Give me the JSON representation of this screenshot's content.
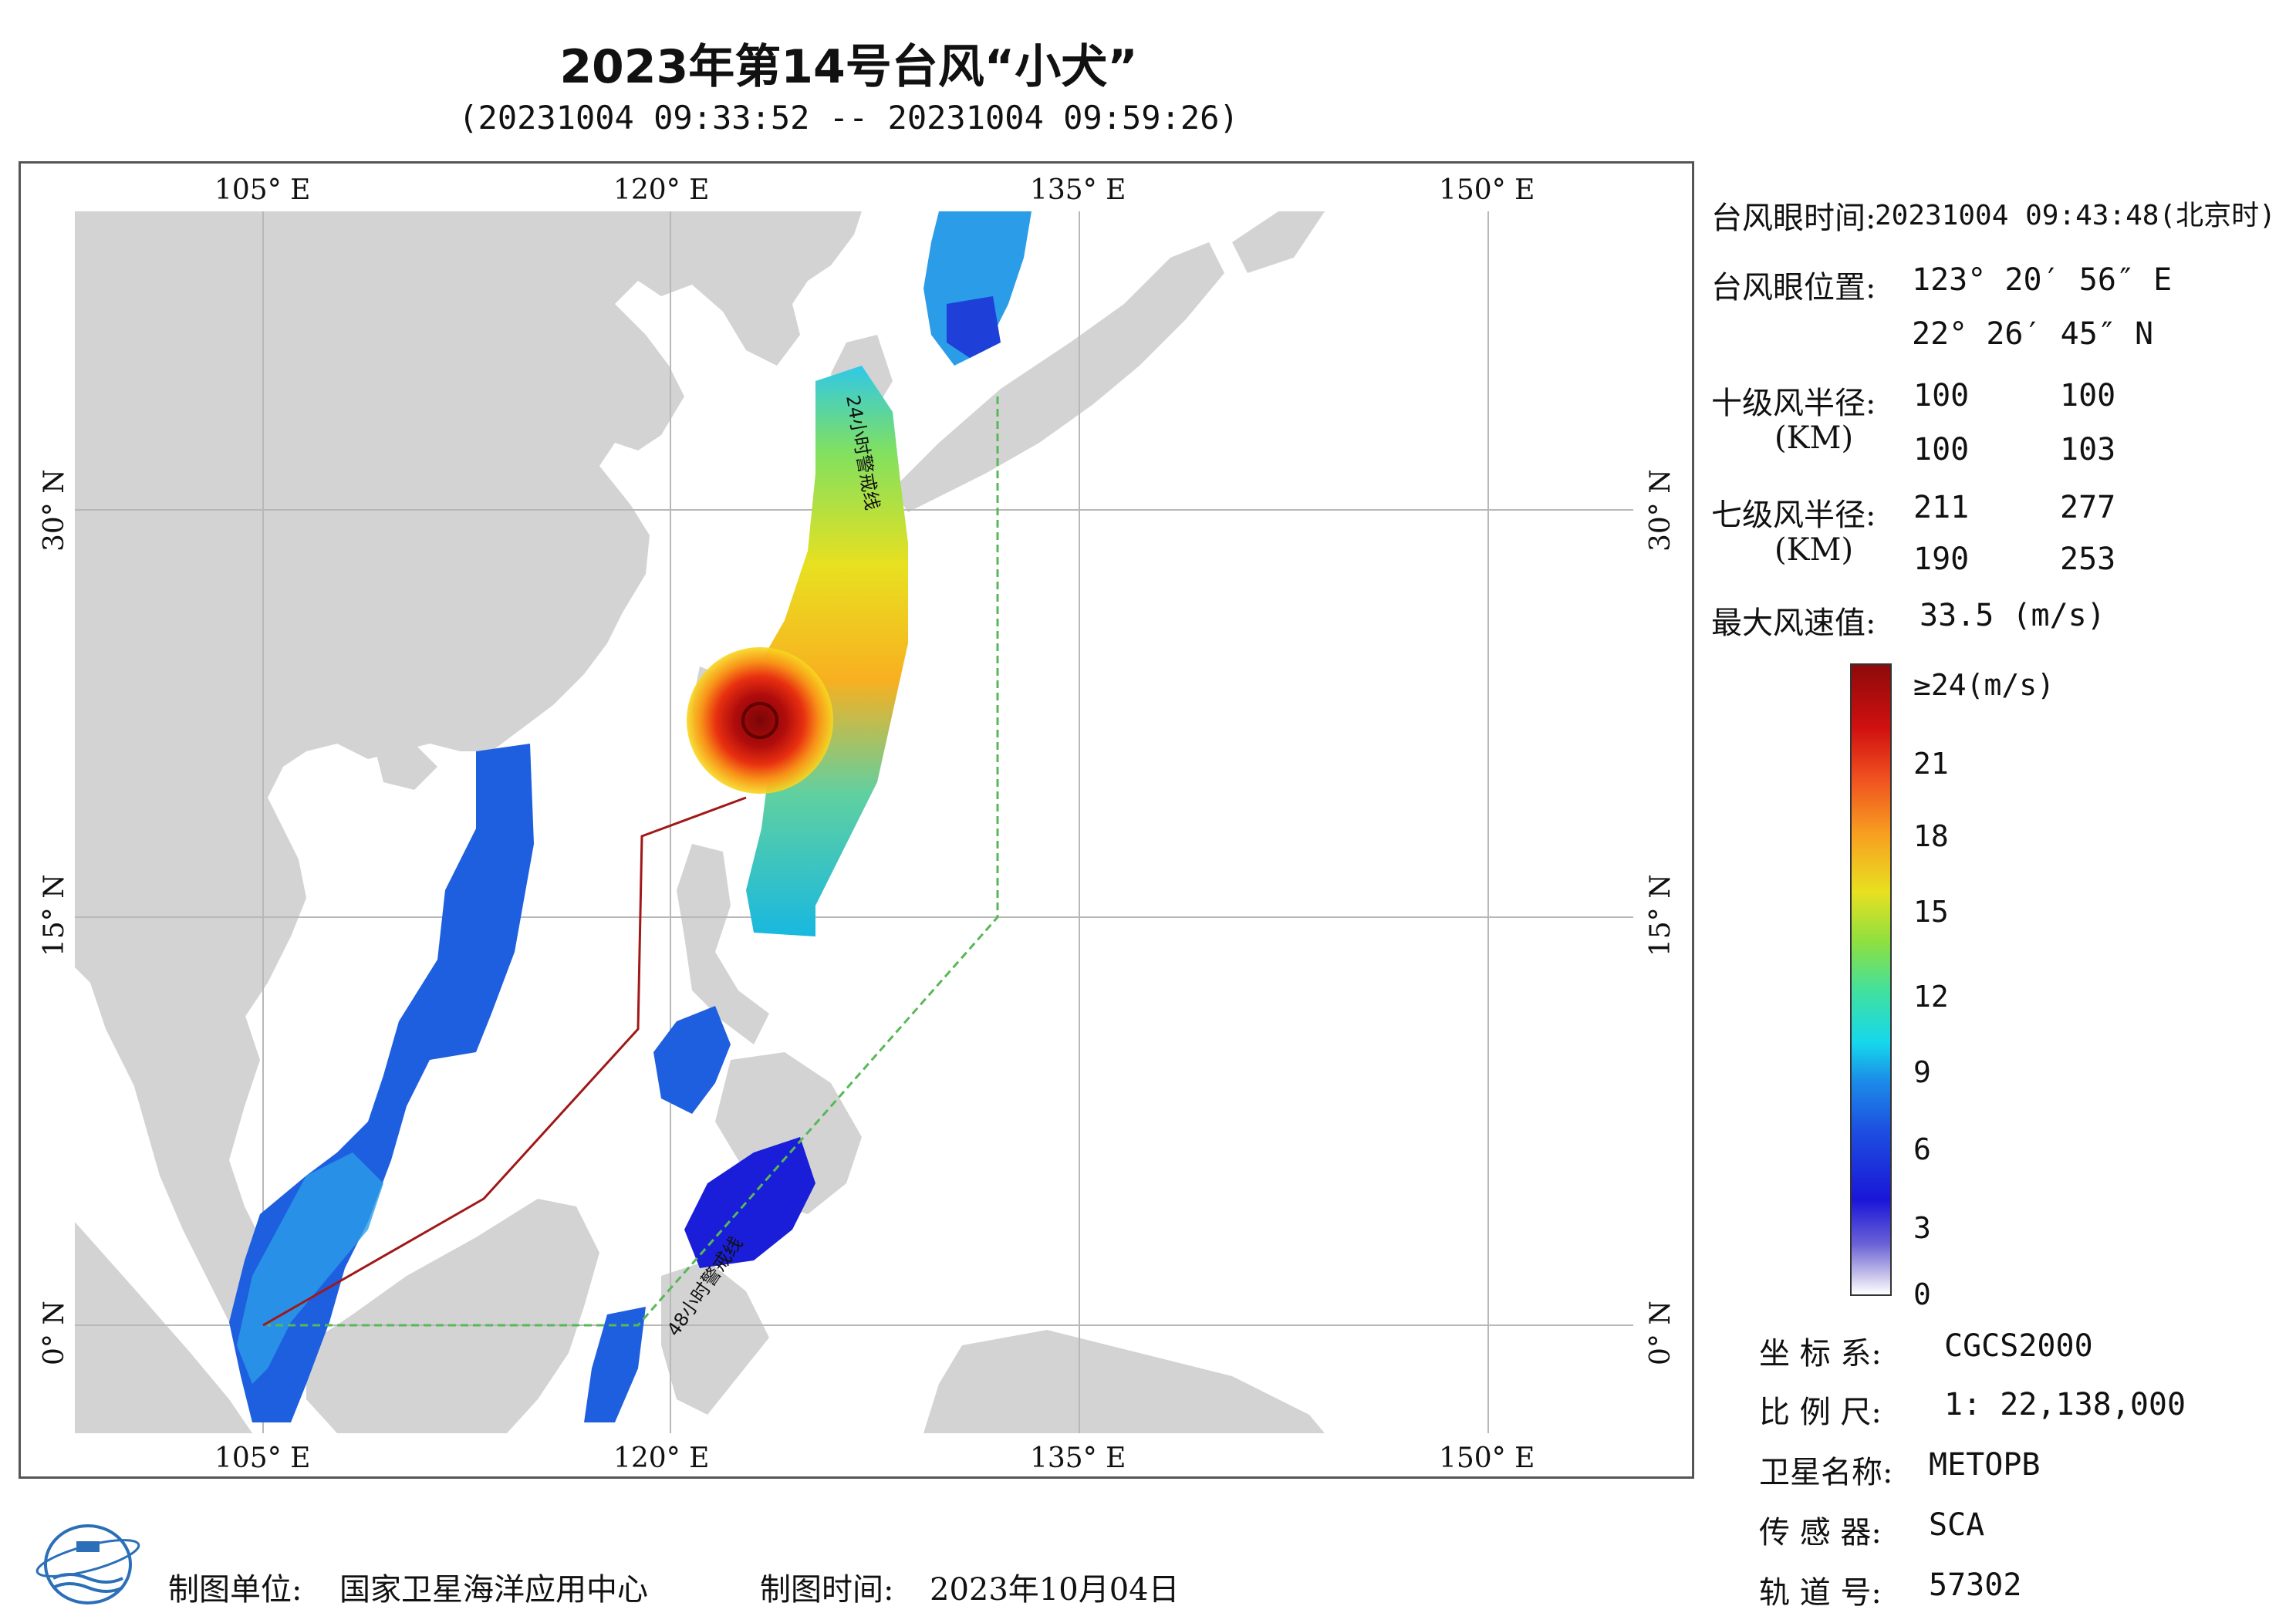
{
  "title": "2023年第14号台风“小犬”",
  "subtitle": "(20231004 09:33:52 -- 20231004 09:59:26)",
  "axes": {
    "top_lon": [
      "105° E",
      "120° E",
      "135° E",
      "150° E"
    ],
    "bottom_lon": [
      "105° E",
      "120° E",
      "135° E",
      "150° E"
    ],
    "left_lat": [
      "30° N",
      "15° N",
      "0° N"
    ],
    "right_lat": [
      "30° N",
      "15° N",
      "0° N"
    ]
  },
  "map_labels": {
    "line24": "24小时警戒线",
    "line48": "48小时警戒线"
  },
  "info": {
    "eye_time_label": "台风眼时间:",
    "eye_time_value": "20231004 09:43:48(北京时)",
    "eye_pos_label": "台风眼位置:",
    "eye_lon": "123° 20′ 56″ E",
    "eye_lat": "22° 26′ 45″ N",
    "r10_label": "十级风半径:",
    "r10_unit": "(KM)",
    "r10_values": [
      "100",
      "100",
      "100",
      "103"
    ],
    "r7_label": "七级风半径:",
    "r7_unit": "(KM)",
    "r7_values": [
      "211",
      "277",
      "190",
      "253"
    ],
    "max_wind_label": "最大风速值:",
    "max_wind_value": "33.5  (m/s)"
  },
  "colorbar": {
    "labels": [
      "≥24(m/s)",
      "21",
      "18",
      "15",
      "12",
      "9",
      "6",
      "3",
      "0"
    ]
  },
  "meta": {
    "crs_label": "坐 标 系:",
    "crs_value": "CGCS2000",
    "scale_label": "比 例 尺:",
    "scale_value": "1: 22,138,000",
    "sat_label": "卫星名称:",
    "sat_value": "METOPB",
    "sensor_label": "传 感 器:",
    "sensor_value": "SCA",
    "orbit_label": "轨 道 号:",
    "orbit_value": "57302"
  },
  "footer": {
    "org_label": "制图单位:",
    "org_value": "国家卫星海洋应用中心",
    "date_label": "制图时间:",
    "date_value": "2023年10月04日"
  },
  "colors": {
    "land": "#d3d3d3",
    "ocean": "#ffffff",
    "line24": "#a01818",
    "line48": "#58b858",
    "grid": "#b8b8b8"
  }
}
